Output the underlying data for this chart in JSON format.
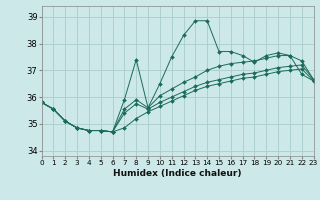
{
  "xlabel": "Humidex (Indice chaleur)",
  "xlim": [
    0,
    23
  ],
  "ylim": [
    33.8,
    39.4
  ],
  "yticks": [
    34,
    35,
    36,
    37,
    38,
    39
  ],
  "xtick_labels": [
    "0",
    "1",
    "2",
    "3",
    "4",
    "5",
    "6",
    "7",
    "8",
    "9",
    "10",
    "11",
    "12",
    "13",
    "14",
    "15",
    "16",
    "17",
    "18",
    "19",
    "20",
    "21",
    "22",
    "23"
  ],
  "bg_color": "#cce8e8",
  "grid_color": "#aacccc",
  "line_color": "#1a6b5a",
  "series": [
    [
      35.8,
      35.55,
      35.1,
      34.85,
      34.75,
      34.75,
      34.7,
      35.9,
      37.4,
      35.6,
      36.5,
      37.5,
      38.3,
      38.85,
      38.85,
      37.7,
      37.7,
      37.55,
      37.3,
      37.55,
      37.65,
      37.55,
      36.85,
      36.6
    ],
    [
      35.8,
      35.55,
      35.1,
      34.85,
      34.75,
      34.75,
      34.7,
      35.55,
      35.9,
      35.6,
      36.05,
      36.3,
      36.55,
      36.75,
      37.0,
      37.15,
      37.25,
      37.3,
      37.35,
      37.45,
      37.55,
      37.55,
      37.35,
      36.65
    ],
    [
      35.8,
      35.55,
      35.1,
      34.85,
      34.75,
      34.75,
      34.7,
      35.4,
      35.75,
      35.55,
      35.8,
      36.0,
      36.2,
      36.4,
      36.55,
      36.65,
      36.75,
      36.85,
      36.9,
      37.0,
      37.1,
      37.15,
      37.2,
      36.65
    ],
    [
      35.8,
      35.55,
      35.1,
      34.85,
      34.75,
      34.75,
      34.7,
      34.85,
      35.2,
      35.45,
      35.65,
      35.85,
      36.05,
      36.25,
      36.4,
      36.5,
      36.6,
      36.7,
      36.75,
      36.85,
      36.95,
      37.0,
      37.05,
      36.6
    ]
  ]
}
